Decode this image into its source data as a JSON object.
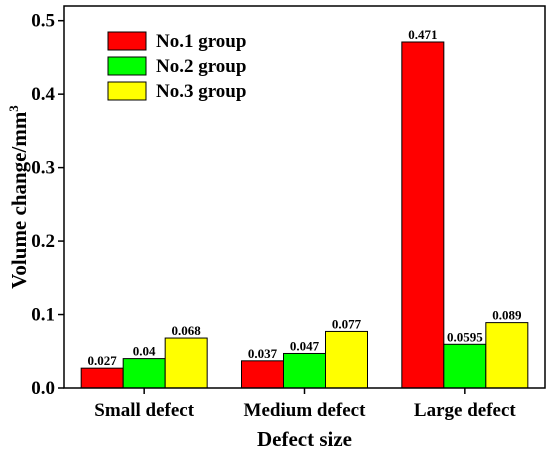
{
  "chart_data": {
    "type": "bar",
    "categories": [
      "Small defect",
      "Medium defect",
      "Large defect"
    ],
    "series": [
      {
        "name": "No.1 group",
        "values": [
          0.027,
          0.037,
          0.471
        ],
        "labels": [
          "0.027",
          "0.037",
          "0.471"
        ],
        "color": "#ff0000"
      },
      {
        "name": "No.2 group",
        "values": [
          0.04,
          0.047,
          0.0595
        ],
        "labels": [
          "0.04",
          "0.047",
          "0.0595"
        ],
        "color": "#00ff00"
      },
      {
        "name": "No.3 group",
        "values": [
          0.068,
          0.077,
          0.089
        ],
        "labels": [
          "0.068",
          "0.077",
          "0.089"
        ],
        "color": "#ffff00"
      }
    ],
    "xlabel": "Defect size",
    "ylabel_main": "Volume change/mm",
    "ylabel_sup": "3",
    "ylim": [
      0,
      0.52
    ],
    "yticks": [
      "0.0",
      "0.1",
      "0.2",
      "0.3",
      "0.4",
      "0.5"
    ],
    "grid": false,
    "legend_position": "top-left"
  }
}
